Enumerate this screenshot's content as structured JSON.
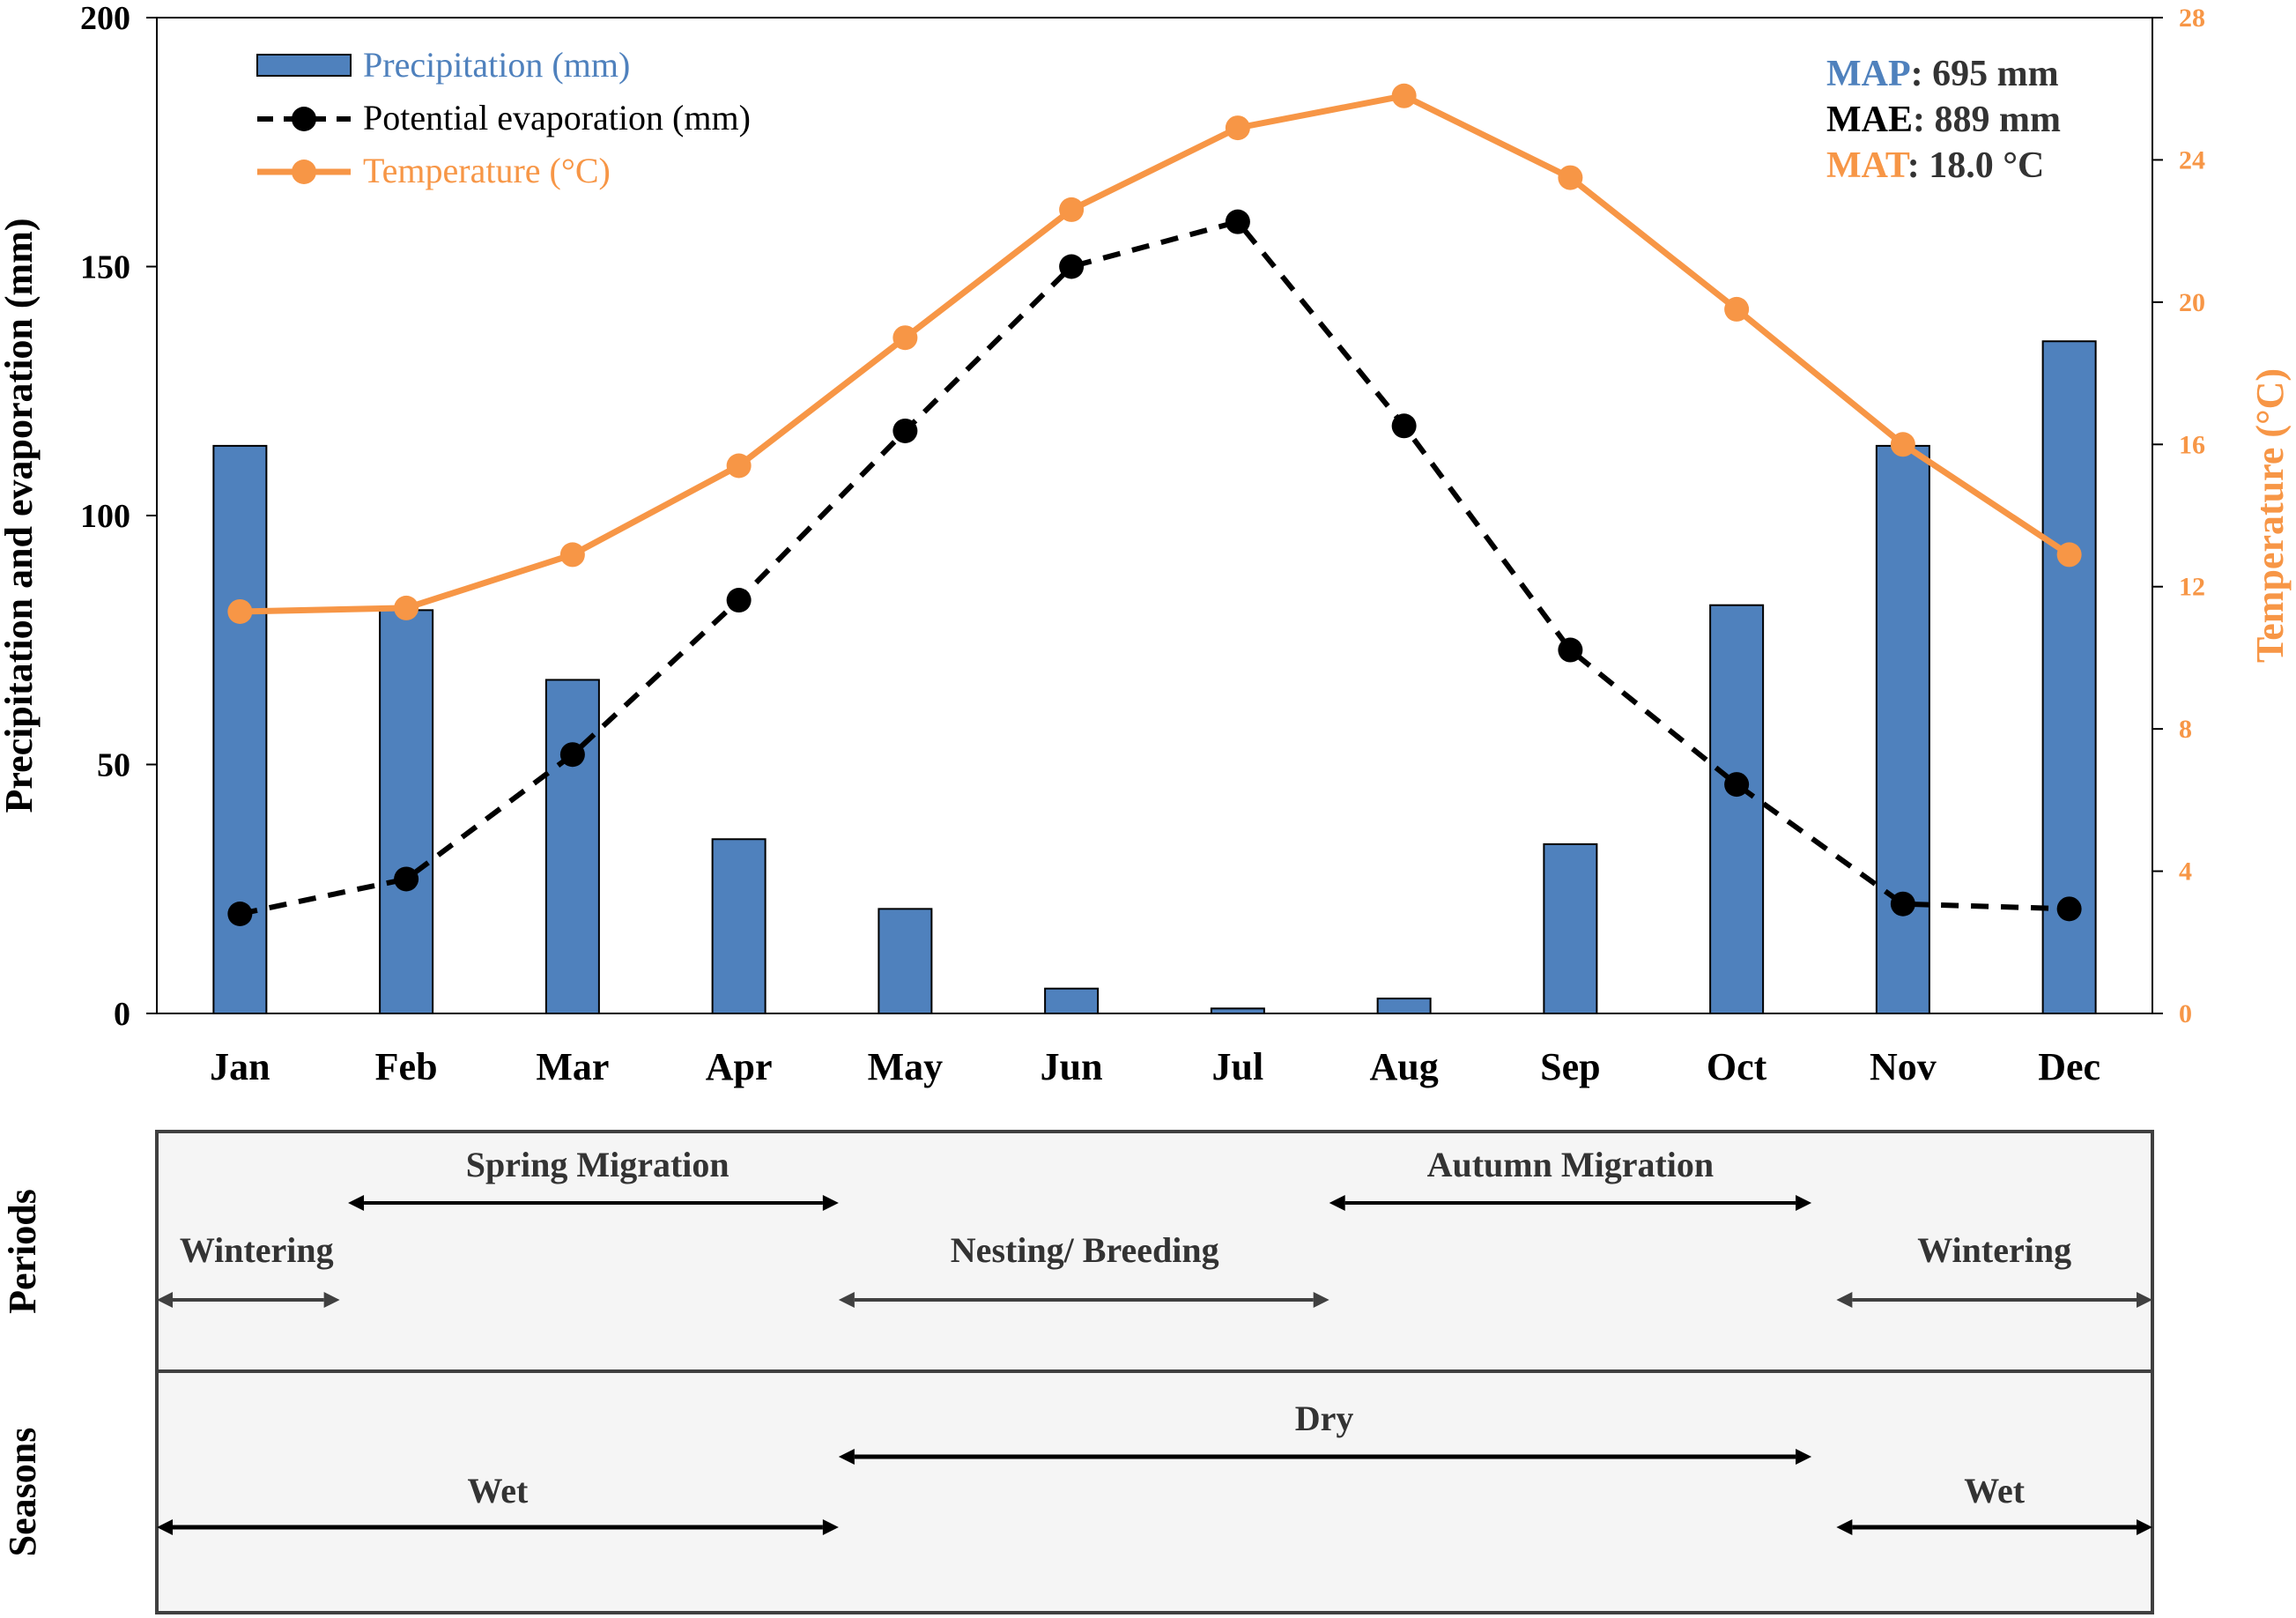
{
  "chart_data": {
    "type": "bar+line",
    "categories": [
      "Jan",
      "Feb",
      "Mar",
      "Apr",
      "May",
      "Jun",
      "Jul",
      "Aug",
      "Sep",
      "Oct",
      "Nov",
      "Dec"
    ],
    "series": [
      {
        "name": "Precipitation (mm)",
        "kind": "bar",
        "axis": "left",
        "color": "#4f81bd",
        "values": [
          114,
          81,
          67,
          35,
          21,
          5,
          1,
          3,
          34,
          82,
          114,
          135
        ]
      },
      {
        "name": "Potential evaporation (mm)",
        "kind": "line-dashed",
        "axis": "left",
        "color": "#000000",
        "values": [
          20,
          27,
          52,
          83,
          117,
          150,
          159,
          118,
          73,
          46,
          22,
          21
        ]
      },
      {
        "name": "Temperature (°C)",
        "kind": "line",
        "axis": "right",
        "color": "#f79646",
        "values": [
          11.3,
          11.4,
          12.9,
          15.4,
          19.0,
          22.6,
          24.9,
          25.8,
          23.5,
          19.8,
          16.0,
          12.9
        ]
      }
    ],
    "ylabel": "Precipitation and evaporation (mm)",
    "y2label": "Temperature (°C)",
    "ylim": [
      0,
      200
    ],
    "yticks": [
      "0",
      "50",
      "100",
      "150",
      "200"
    ],
    "y2lim": [
      0,
      28
    ],
    "y2ticks": [
      "0",
      "4",
      "8",
      "12",
      "16",
      "20",
      "24",
      "28"
    ],
    "summary": [
      {
        "key": "MAP",
        "value": ": 695 mm",
        "color": "#4f81bd"
      },
      {
        "key": "MAE",
        "value": ": 889 mm",
        "color": "#000000"
      },
      {
        "key": "MAT",
        "value": ": 18.0 °C",
        "color": "#f79646"
      }
    ],
    "periods": {
      "label": "Periods",
      "items": [
        {
          "label": "Wintering",
          "from": -0.5,
          "to": 0.6,
          "label_at": 0.1,
          "row": "low"
        },
        {
          "label": "Spring Migration",
          "from": 0.65,
          "to": 3.6,
          "label_at": 2.15,
          "row": "high"
        },
        {
          "label": "Nesting/ Breeding",
          "from": 3.6,
          "to": 6.55,
          "label_at": 5.08,
          "row": "low"
        },
        {
          "label": "Autumn Migration",
          "from": 6.55,
          "to": 9.45,
          "label_at": 8.0,
          "row": "high"
        },
        {
          "label": "Wintering",
          "from": 9.6,
          "to": 11.5,
          "label_at": 10.55,
          "row": "low"
        }
      ]
    },
    "seasons": {
      "label": "Seasons",
      "items": [
        {
          "label": "Wet",
          "from": -0.5,
          "to": 3.6,
          "label_at": 1.55,
          "row": "low"
        },
        {
          "label": "Dry",
          "from": 3.6,
          "to": 9.45,
          "label_at": 6.52,
          "row": "high"
        },
        {
          "label": "Wet",
          "from": 9.6,
          "to": 11.5,
          "label_at": 10.55,
          "row": "low"
        }
      ]
    }
  }
}
